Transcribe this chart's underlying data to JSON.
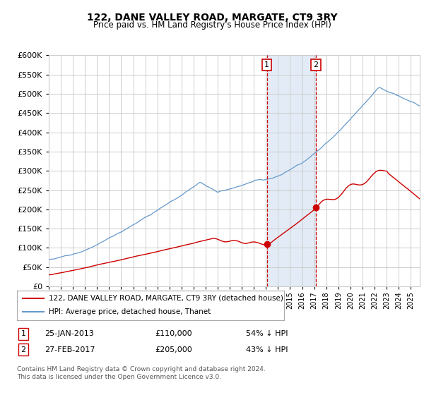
{
  "title": "122, DANE VALLEY ROAD, MARGATE, CT9 3RY",
  "subtitle": "Price paid vs. HM Land Registry's House Price Index (HPI)",
  "legend_label_red": "122, DANE VALLEY ROAD, MARGATE, CT9 3RY (detached house)",
  "legend_label_blue": "HPI: Average price, detached house, Thanet",
  "transaction1_label": "1",
  "transaction1_date": "25-JAN-2013",
  "transaction1_price": "£110,000",
  "transaction1_hpi": "54% ↓ HPI",
  "transaction2_label": "2",
  "transaction2_date": "27-FEB-2017",
  "transaction2_price": "£205,000",
  "transaction2_hpi": "43% ↓ HPI",
  "footer": "Contains HM Land Registry data © Crown copyright and database right 2024.\nThis data is licensed under the Open Government Licence v3.0.",
  "color_red": "#cc0000",
  "color_blue": "#6699cc",
  "color_bg": "#ffffff",
  "color_grid": "#cccccc",
  "color_shading": "#ccddef",
  "ylim": [
    0,
    600000
  ],
  "yticks": [
    0,
    50000,
    100000,
    150000,
    200000,
    250000,
    300000,
    350000,
    400000,
    450000,
    500000,
    550000,
    600000
  ],
  "transaction1_x": 2013.07,
  "transaction1_y_red": 110000,
  "transaction2_x": 2017.15,
  "transaction2_y_red": 205000,
  "vline1_x": 2013.07,
  "vline2_x": 2017.15,
  "shade_x1": 2013.07,
  "shade_x2": 2017.15,
  "xmin": 1995.0,
  "xmax": 2025.75
}
